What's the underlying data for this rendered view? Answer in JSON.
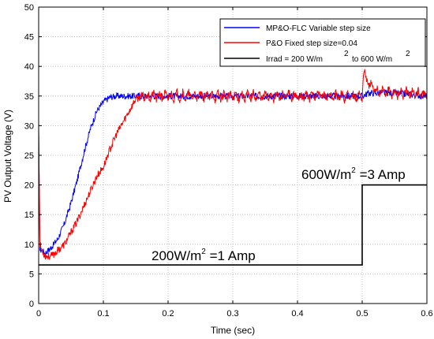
{
  "chart_data": {
    "type": "line",
    "xlabel": "Time (sec)",
    "ylabel": "PV Output Voltage (V)",
    "xlim": [
      0,
      0.6
    ],
    "ylim": [
      0,
      50
    ],
    "xticks": [
      "0",
      "0.1",
      "0.2",
      "0.3",
      "0.4",
      "0.5",
      "0.6"
    ],
    "yticks": [
      "0",
      "5",
      "10",
      "15",
      "20",
      "25",
      "30",
      "35",
      "40",
      "45",
      "50"
    ],
    "grid": true,
    "legend_position": "top-right",
    "legend": {
      "mpo_flc": "MP&O-FLC Variable step size",
      "po_fixed": "P&O Fixed step size=0.04",
      "irrad": "Irrad = 200 W/m",
      "irrad_sup1": "2",
      "irrad_to": "to 600 W/m",
      "irrad_sup2": "2"
    },
    "annotations": {
      "low_main": "200W/m",
      "low_sup": "2",
      "low_tail": " =1 Amp",
      "high_main": "600W/m",
      "high_sup": "2",
      "high_tail": " =3 Amp"
    },
    "colors": {
      "mpo_flc": "#0000ff",
      "po_fixed": "#ff0000",
      "irrad": "#000000",
      "grid": "#b0b0b0"
    },
    "series": [
      {
        "name": "MP&O-FLC Variable step size",
        "x": [
          0,
          0.002,
          0.005,
          0.01,
          0.02,
          0.03,
          0.04,
          0.05,
          0.06,
          0.07,
          0.08,
          0.09,
          0.1,
          0.11,
          0.12,
          0.13,
          0.15,
          0.2,
          0.3,
          0.4,
          0.5,
          0.51,
          0.55,
          0.6
        ],
        "y": [
          29,
          9,
          9,
          8.5,
          9.5,
          11,
          13.5,
          17,
          21,
          25.5,
          29.5,
          32.5,
          34,
          34.8,
          35,
          35,
          35,
          35,
          35,
          35,
          35,
          35.5,
          35.5,
          35
        ]
      },
      {
        "name": "P&O Fixed step size=0.04",
        "x": [
          0,
          0.002,
          0.005,
          0.01,
          0.02,
          0.03,
          0.04,
          0.05,
          0.06,
          0.07,
          0.08,
          0.09,
          0.1,
          0.11,
          0.12,
          0.13,
          0.14,
          0.15,
          0.16,
          0.17,
          0.2,
          0.3,
          0.4,
          0.5,
          0.502,
          0.51,
          0.52,
          0.55,
          0.58,
          0.6
        ],
        "y": [
          31,
          10,
          9,
          8,
          8,
          9,
          10,
          12,
          14,
          16.5,
          19,
          21.5,
          23,
          26,
          28.5,
          30.5,
          32.5,
          34.5,
          35,
          35,
          35,
          35,
          35,
          35,
          39,
          37,
          36,
          35.5,
          35.5,
          35
        ]
      },
      {
        "name": "Irrad = 200 W/m2 to 600 W/m2",
        "x": [
          0,
          0.5,
          0.5,
          0.6
        ],
        "y": [
          6.5,
          6.5,
          20,
          20
        ]
      }
    ]
  }
}
